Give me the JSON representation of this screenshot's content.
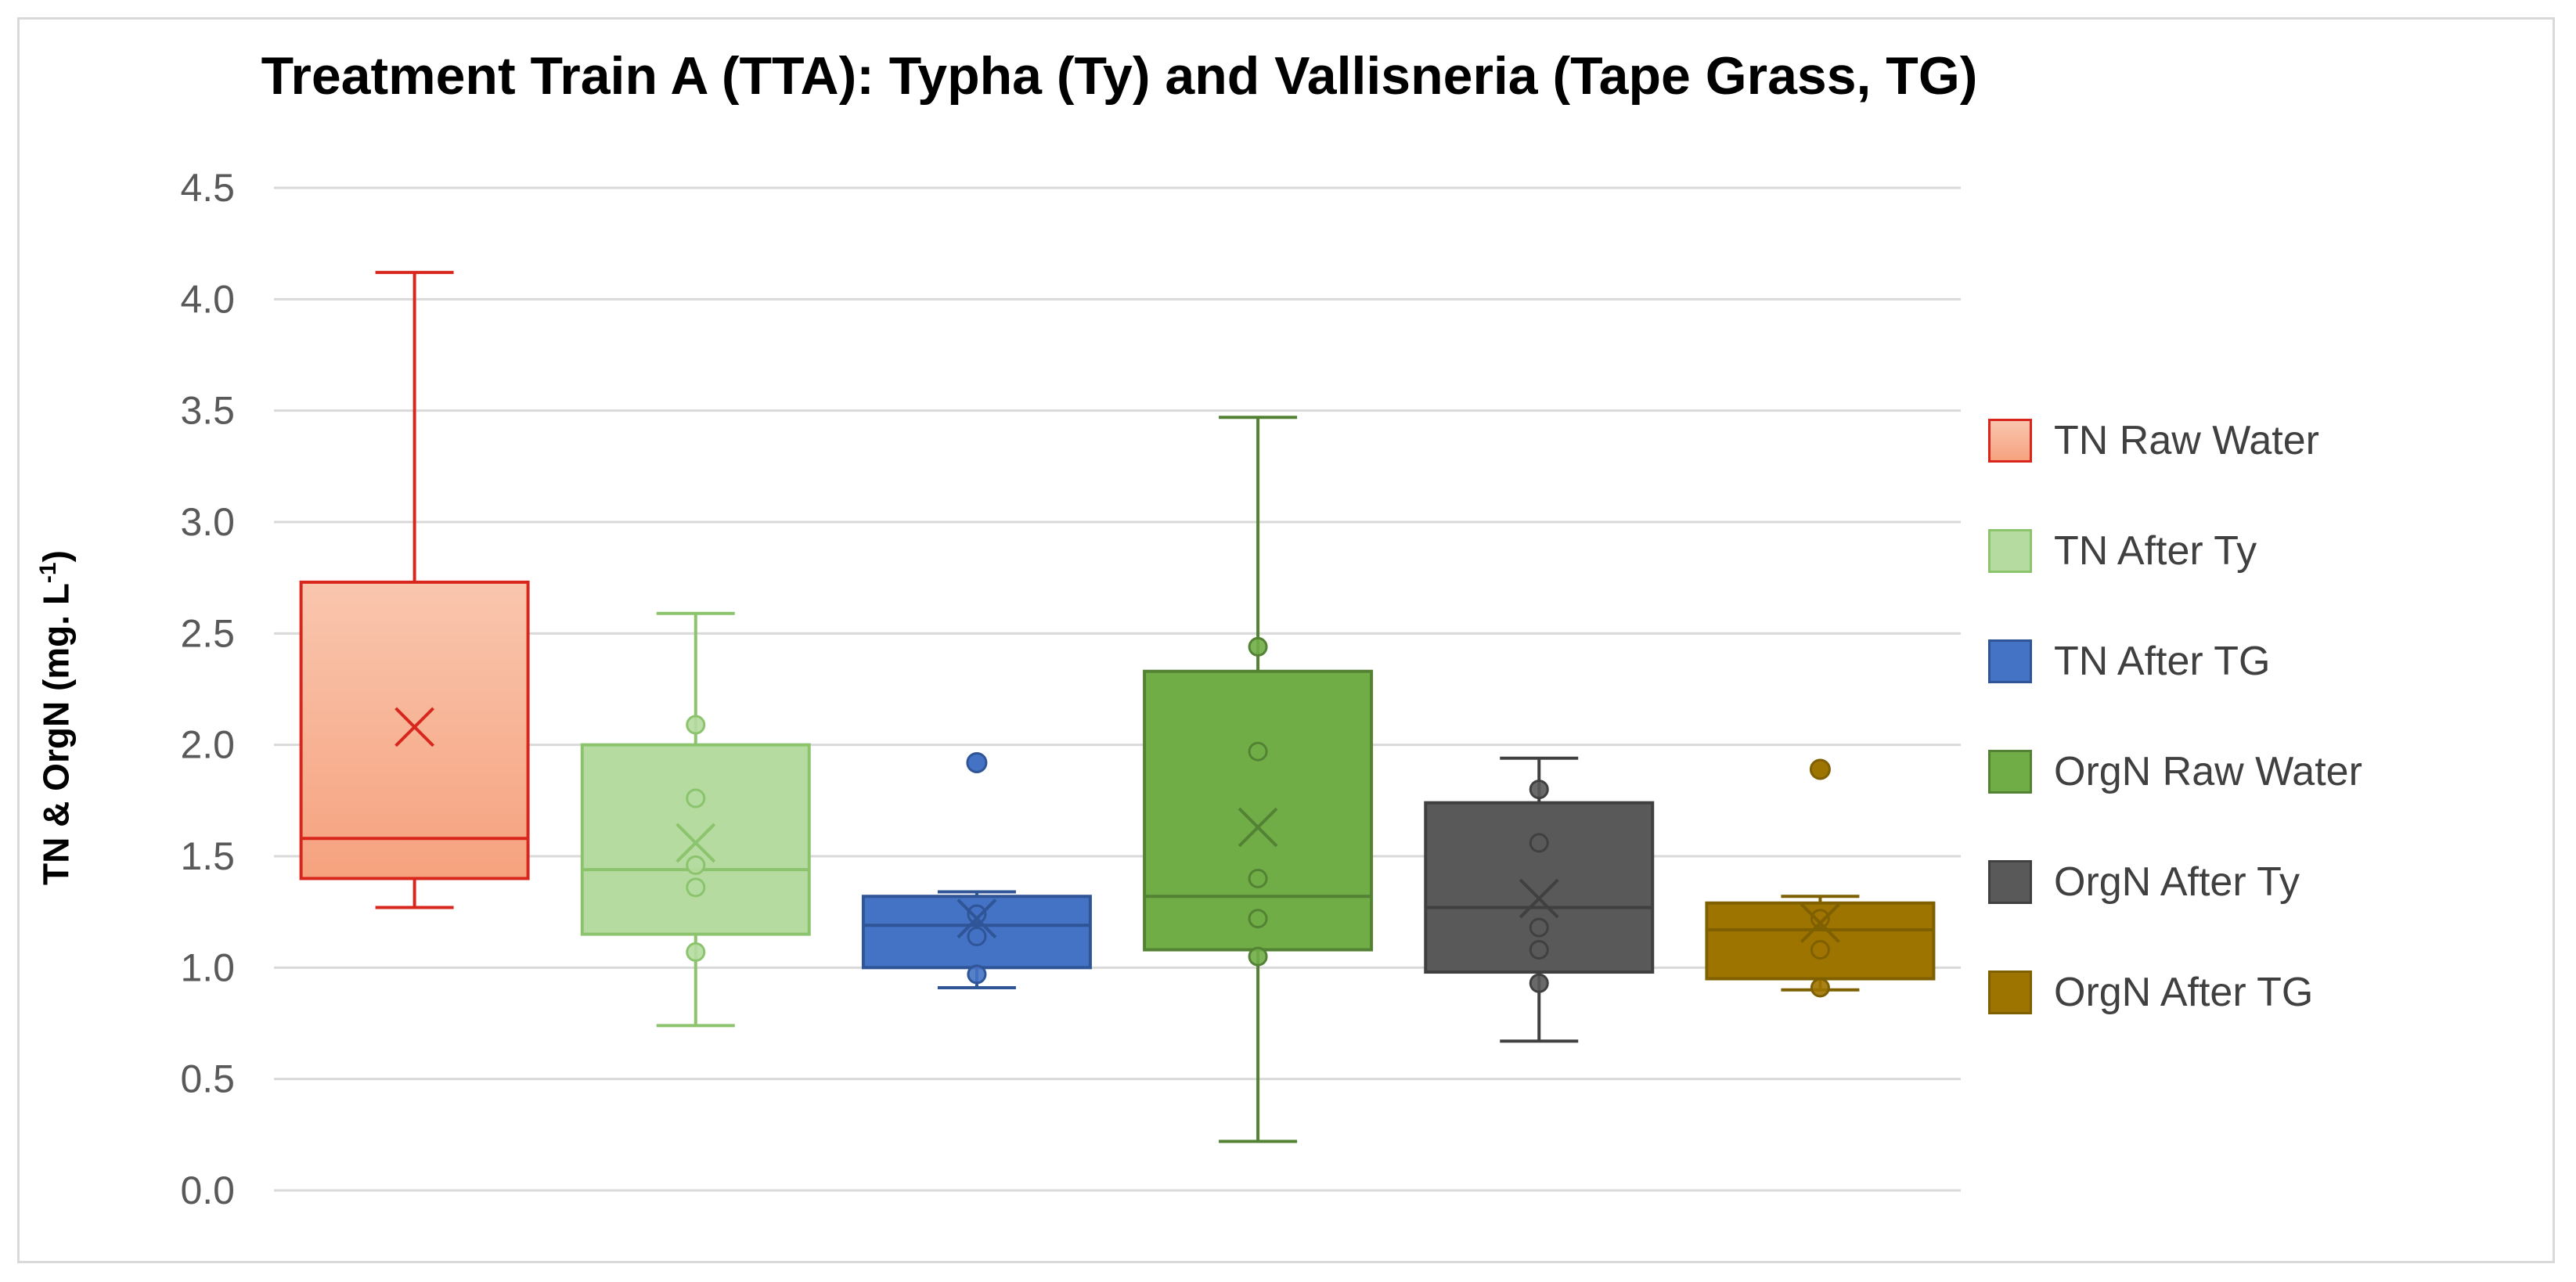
{
  "chart_data": {
    "type": "box",
    "title": "Treatment Train A (TTA): Typha (Ty) and Vallisneria (Tape Grass, TG)",
    "ylabel": "TN & OrgN (mg. L",
    "ylabel_superscript": "-1",
    "ylabel_suffix": ")",
    "xlabel": "",
    "ylim": [
      0,
      4.5
    ],
    "yticks": [
      "0.0",
      "0.5",
      "1.0",
      "1.5",
      "2.0",
      "2.5",
      "3.0",
      "3.5",
      "4.0",
      "4.5"
    ],
    "ytick_values": [
      0,
      0.5,
      1,
      1.5,
      2,
      2.5,
      3,
      3.5,
      4,
      4.5
    ],
    "grid": true,
    "legend_position": "right",
    "series": [
      {
        "name": "TN Raw Water",
        "fill": "#f8b394",
        "stroke": "#d9261c",
        "gradient": true,
        "whisker_low": 1.27,
        "q1": 1.4,
        "median": 1.58,
        "q3": 2.73,
        "whisker_high": 4.12,
        "mean": 2.08,
        "points": [],
        "outliers": []
      },
      {
        "name": "TN After Ty",
        "fill": "#b5dba0",
        "stroke": "#8cc46e",
        "gradient": false,
        "whisker_low": 0.74,
        "q1": 1.15,
        "median": 1.44,
        "q3": 2.0,
        "whisker_high": 2.59,
        "mean": 1.56,
        "points": [
          1.07,
          1.36,
          1.46,
          1.76,
          2.09
        ],
        "outliers": []
      },
      {
        "name": "TN After TG",
        "fill": "#4472c4",
        "stroke": "#2f5597",
        "gradient": false,
        "whisker_low": 0.91,
        "q1": 1.0,
        "median": 1.19,
        "q3": 1.32,
        "whisker_high": 1.34,
        "mean": 1.22,
        "points": [
          0.97,
          1.14,
          1.24
        ],
        "outliers": [
          1.92
        ]
      },
      {
        "name": "OrgN Raw Water",
        "fill": "#70ad47",
        "stroke": "#548235",
        "gradient": false,
        "whisker_low": 0.22,
        "q1": 1.08,
        "median": 1.32,
        "q3": 2.33,
        "whisker_high": 3.47,
        "mean": 1.63,
        "points": [
          1.05,
          1.22,
          1.4,
          1.97,
          2.44
        ],
        "outliers": []
      },
      {
        "name": "OrgN After Ty",
        "fill": "#595959",
        "stroke": "#404040",
        "gradient": false,
        "whisker_low": 0.67,
        "q1": 0.98,
        "median": 1.27,
        "q3": 1.74,
        "whisker_high": 1.94,
        "mean": 1.31,
        "points": [
          0.93,
          1.08,
          1.18,
          1.56,
          1.8
        ],
        "outliers": []
      },
      {
        "name": "OrgN After TG",
        "fill": "#9e7400",
        "stroke": "#7f6000",
        "gradient": false,
        "whisker_low": 0.9,
        "q1": 0.95,
        "median": 1.17,
        "q3": 1.29,
        "whisker_high": 1.32,
        "mean": 1.2,
        "points": [
          0.91,
          1.08,
          1.22
        ],
        "outliers": [
          1.89
        ]
      }
    ]
  }
}
